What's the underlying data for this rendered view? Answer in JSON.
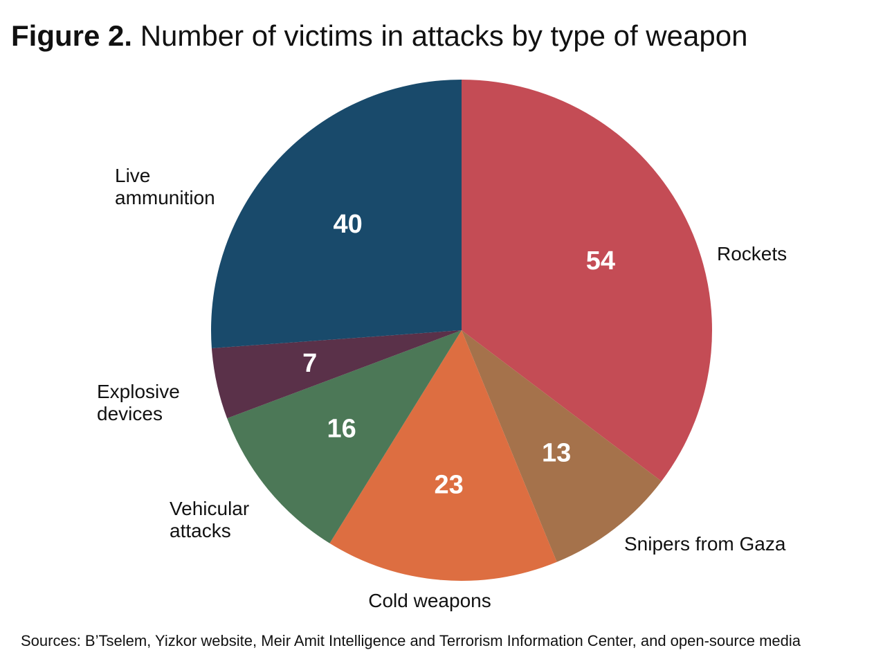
{
  "title_prefix": "Figure 2.",
  "title_text": "Number of victims in attacks by type of weapon",
  "source": "Sources: B’Tselem, Yizkor website, Meir Amit Intelligence and Terrorism Information Center, and open-source media",
  "chart_data": {
    "type": "pie",
    "title": "Figure 2. Number of victims in attacks by type of weapon",
    "start": "top",
    "direction": "clockwise",
    "slices": [
      {
        "label": "Rockets",
        "label_lines": [
          "Rockets"
        ],
        "value": 54,
        "color": "#c44c55"
      },
      {
        "label": "Snipers from Gaza",
        "label_lines": [
          "Snipers from Gaza"
        ],
        "value": 13,
        "color": "#a5724b"
      },
      {
        "label": "Cold weapons",
        "label_lines": [
          "Cold weapons"
        ],
        "value": 23,
        "color": "#dd6e41"
      },
      {
        "label": "Vehicular attacks",
        "label_lines": [
          "Vehicular",
          "attacks"
        ],
        "value": 16,
        "color": "#4c7857"
      },
      {
        "label": "Explosive devices",
        "label_lines": [
          "Explosive",
          "devices"
        ],
        "value": 7,
        "color": "#5a3149"
      },
      {
        "label": "Live ammunition",
        "label_lines": [
          "Live",
          "ammunition"
        ],
        "value": 40,
        "color": "#194a6b"
      }
    ]
  }
}
